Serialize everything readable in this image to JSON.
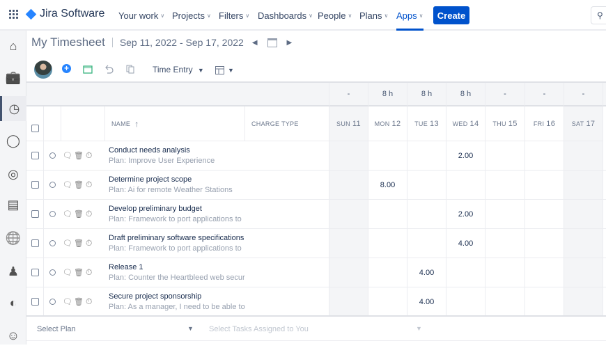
{
  "topbar": {
    "product": "Jira Software",
    "nav": [
      {
        "label": "Your work"
      },
      {
        "label": "Projects"
      },
      {
        "label": "Filters"
      },
      {
        "label": "Dashboards"
      },
      {
        "label": "People"
      },
      {
        "label": "Plans"
      },
      {
        "label": "Apps",
        "active": true
      }
    ],
    "create_label": "Create",
    "accent": "#0052cc"
  },
  "sidebar": {
    "items": [
      "home-icon",
      "briefcase-icon",
      "timesheet-clock-icon",
      "lightbulb-icon",
      "target-icon",
      "report-icon",
      "globe-icon",
      "team-icon",
      "portfolio-report-icon",
      "user-icon"
    ],
    "selected": "timesheet-clock-icon"
  },
  "header": {
    "title": "My Timesheet",
    "date_range": "Sep 11, 2022 - Sep 17, 2022",
    "view_label": "Time Entry"
  },
  "table": {
    "columns": {
      "name": "NAME",
      "charge_type": "CHARGE TYPE"
    },
    "totals": [
      "-",
      "8 h",
      "8 h",
      "8 h",
      "-",
      "-",
      "-"
    ],
    "days": [
      {
        "dow": "SUN",
        "d": "11"
      },
      {
        "dow": "MON",
        "d": "12"
      },
      {
        "dow": "TUE",
        "d": "13"
      },
      {
        "dow": "WED",
        "d": "14"
      },
      {
        "dow": "THU",
        "d": "15"
      },
      {
        "dow": "FRI",
        "d": "16"
      },
      {
        "dow": "SAT",
        "d": "17"
      }
    ],
    "rows": [
      {
        "name": "Conduct needs analysis",
        "plan": "Plan: Improve User Experience",
        "hours": [
          "",
          "",
          "",
          "2.00",
          "",
          "",
          ""
        ]
      },
      {
        "name": "Determine project scope",
        "plan": "Plan: Ai for remote Weather Stations",
        "hours": [
          "",
          "8.00",
          "",
          "",
          "",
          "",
          ""
        ]
      },
      {
        "name": "Develop preliminary budget",
        "plan": "Plan: Framework to port applications to",
        "hours": [
          "",
          "",
          "",
          "2.00",
          "",
          "",
          ""
        ]
      },
      {
        "name": "Draft preliminary software specifications",
        "plan": "Plan: Framework to port applications to",
        "hours": [
          "",
          "",
          "",
          "4.00",
          "",
          "",
          ""
        ]
      },
      {
        "name": "Release 1",
        "plan": "Plan: Counter the Heartbleed web secur",
        "hours": [
          "",
          "",
          "4.00",
          "",
          "",
          "",
          ""
        ]
      },
      {
        "name": "Secure project sponsorship",
        "plan": "Plan: As a manager, I need to be able to",
        "hours": [
          "",
          "",
          "4.00",
          "",
          "",
          "",
          ""
        ]
      }
    ]
  },
  "footer": {
    "select_plan": "Select Plan",
    "select_tasks": "Select Tasks Assigned to You"
  }
}
